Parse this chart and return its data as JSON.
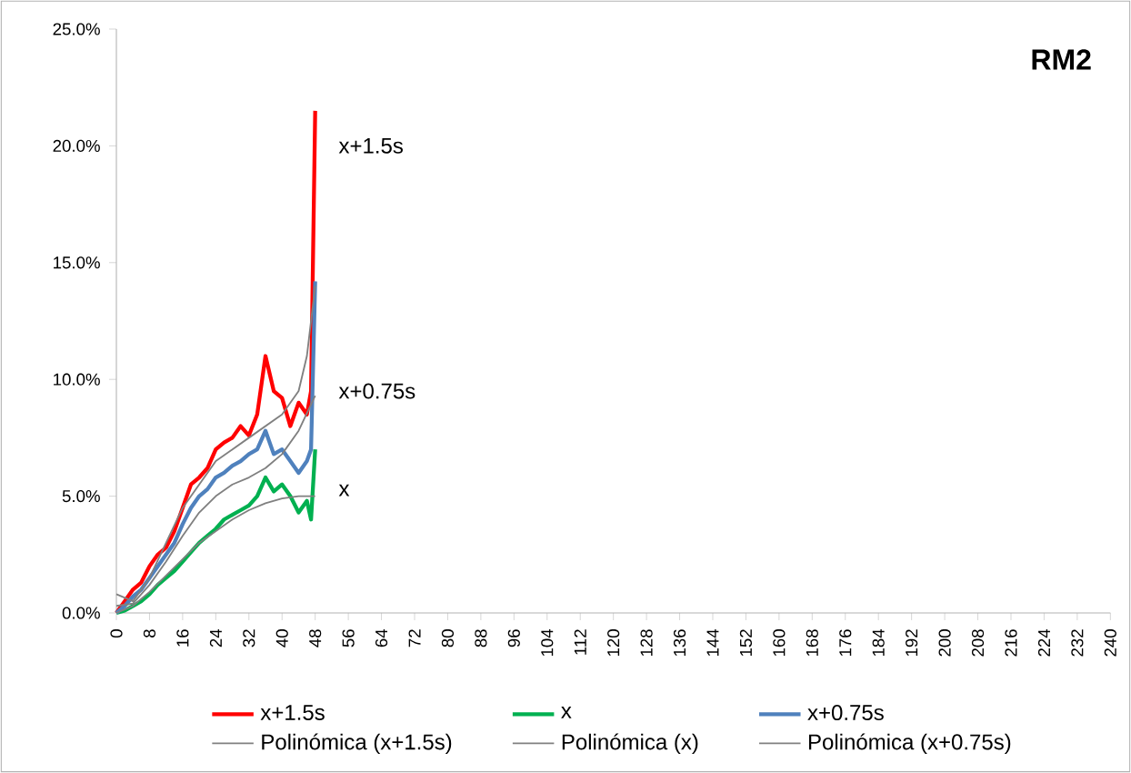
{
  "chart_data": {
    "type": "line",
    "title": "RM2",
    "xlim": [
      0,
      240
    ],
    "xticks": [
      0,
      8,
      16,
      24,
      32,
      40,
      48,
      56,
      64,
      72,
      80,
      88,
      96,
      104,
      112,
      120,
      128,
      136,
      144,
      152,
      160,
      168,
      176,
      184,
      192,
      200,
      208,
      216,
      224,
      232,
      240
    ],
    "ylim": [
      0,
      25
    ],
    "yticks": [
      {
        "value": 0,
        "label": "0.0%"
      },
      {
        "value": 5,
        "label": "5.0%"
      },
      {
        "value": 10,
        "label": "10.0%"
      },
      {
        "value": 15,
        "label": "15.0%"
      },
      {
        "value": 20,
        "label": "20.0%"
      },
      {
        "value": 25,
        "label": "25.0%"
      }
    ],
    "grid": false,
    "legend": "bottom",
    "marker": "none",
    "line_style": "solid",
    "series": [
      {
        "name": "x+1.5s",
        "color": "#ff0000",
        "x": [
          0,
          2,
          4,
          6,
          8,
          10,
          12,
          14,
          16,
          18,
          20,
          22,
          24,
          26,
          28,
          30,
          32,
          34,
          36,
          38,
          40,
          42,
          44,
          46,
          47,
          48
        ],
        "values": [
          0,
          0.5,
          1.0,
          1.3,
          2.0,
          2.5,
          2.8,
          3.5,
          4.5,
          5.5,
          5.8,
          6.2,
          7.0,
          7.3,
          7.5,
          8.0,
          7.6,
          8.5,
          11.0,
          9.5,
          9.2,
          8.0,
          9.0,
          8.5,
          9.5,
          21.5
        ]
      },
      {
        "name": "x",
        "color": "#00b050",
        "x": [
          0,
          2,
          4,
          6,
          8,
          10,
          12,
          14,
          16,
          18,
          20,
          22,
          24,
          26,
          28,
          30,
          32,
          34,
          36,
          38,
          40,
          42,
          44,
          46,
          47,
          48
        ],
        "values": [
          0,
          0.1,
          0.3,
          0.5,
          0.8,
          1.2,
          1.5,
          1.8,
          2.2,
          2.6,
          3.0,
          3.3,
          3.6,
          4.0,
          4.2,
          4.4,
          4.6,
          5.0,
          5.8,
          5.2,
          5.5,
          5.0,
          4.3,
          4.8,
          4.0,
          7.0
        ]
      },
      {
        "name": "x+0.75s",
        "color": "#4f81bd",
        "x": [
          0,
          2,
          4,
          6,
          8,
          10,
          12,
          14,
          16,
          18,
          20,
          22,
          24,
          26,
          28,
          30,
          32,
          34,
          36,
          38,
          40,
          42,
          44,
          46,
          47,
          48
        ],
        "values": [
          0,
          0.3,
          0.7,
          1.0,
          1.5,
          2.0,
          2.5,
          3.0,
          3.8,
          4.5,
          5.0,
          5.3,
          5.8,
          6.0,
          6.3,
          6.5,
          6.8,
          7.0,
          7.8,
          6.8,
          7.0,
          6.5,
          6.0,
          6.5,
          7.0,
          14.2
        ]
      },
      {
        "name": "Polinómica (x+1.5s)",
        "color": "#808080",
        "x": [
          0,
          4,
          8,
          12,
          16,
          20,
          24,
          28,
          32,
          36,
          40,
          44,
          46,
          48
        ],
        "values": [
          0.8,
          0.5,
          1.5,
          3.0,
          4.5,
          5.5,
          6.5,
          7.0,
          7.5,
          8.0,
          8.5,
          9.5,
          11.0,
          14.0
        ]
      },
      {
        "name": "Polinómica (x)",
        "color": "#808080",
        "x": [
          0,
          4,
          8,
          12,
          16,
          20,
          24,
          28,
          32,
          36,
          40,
          44,
          48
        ],
        "values": [
          0,
          0.3,
          0.9,
          1.6,
          2.3,
          3.0,
          3.5,
          4.0,
          4.4,
          4.7,
          4.9,
          5.0,
          5.0
        ]
      },
      {
        "name": "Polinómica (x+0.75s)",
        "color": "#808080",
        "x": [
          0,
          4,
          8,
          12,
          16,
          20,
          24,
          28,
          32,
          36,
          40,
          44,
          48
        ],
        "values": [
          0.3,
          0.4,
          1.2,
          2.2,
          3.3,
          4.3,
          5.0,
          5.5,
          5.8,
          6.2,
          6.8,
          7.8,
          9.3
        ]
      }
    ],
    "annotations": [
      "x+1.5s",
      "x+0.75s",
      "x"
    ]
  }
}
